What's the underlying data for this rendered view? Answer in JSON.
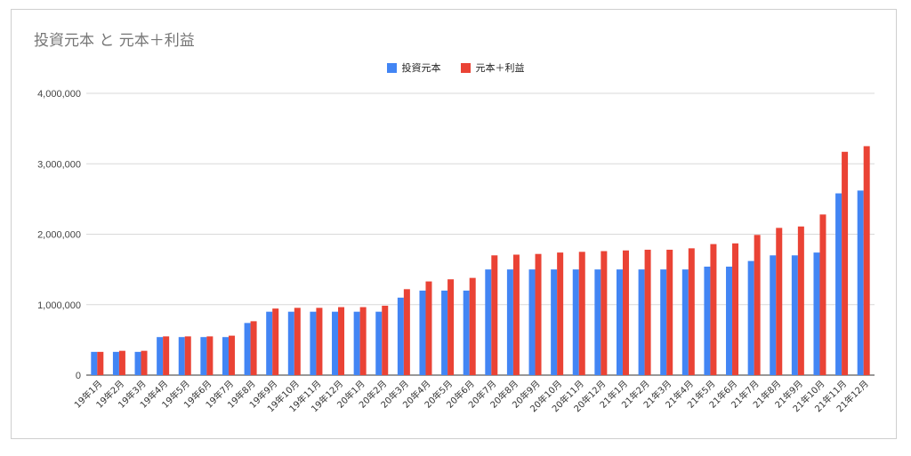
{
  "chart_data": {
    "type": "bar",
    "title": "投資元本 と 元本＋利益",
    "xlabel": "",
    "ylabel": "",
    "ylim": [
      0,
      4000000
    ],
    "yticks": [
      "0",
      "1,000,000",
      "2,000,000",
      "3,000,000",
      "4,000,000"
    ],
    "grid": true,
    "legend_position": "top-center",
    "categories": [
      "19年1月",
      "19年2月",
      "19年3月",
      "19年4月",
      "19年5月",
      "19年6月",
      "19年7月",
      "19年8月",
      "19年9月",
      "19年10月",
      "19年11月",
      "19年12月",
      "20年1月",
      "20年2月",
      "20年3月",
      "20年4月",
      "20年5月",
      "20年6月",
      "20年7月",
      "20年8月",
      "20年9月",
      "20年10月",
      "20年11月",
      "20年12月",
      "21年1月",
      "21年2月",
      "21年3月",
      "21年4月",
      "21年5月",
      "21年6月",
      "21年7月",
      "21年8月",
      "21年9月",
      "21年10月",
      "21年11月",
      "21年12月"
    ],
    "series": [
      {
        "name": "投資元本",
        "color": "#4285f4",
        "values": [
          330000,
          330000,
          330000,
          540000,
          540000,
          540000,
          540000,
          740000,
          900000,
          900000,
          900000,
          900000,
          900000,
          900000,
          1100000,
          1200000,
          1200000,
          1200000,
          1500000,
          1500000,
          1500000,
          1500000,
          1500000,
          1500000,
          1500000,
          1500000,
          1500000,
          1500000,
          1540000,
          1540000,
          1620000,
          1700000,
          1700000,
          1740000,
          2580000,
          2620000
        ]
      },
      {
        "name": "元本＋利益",
        "color": "#ea4335",
        "values": [
          330000,
          345000,
          345000,
          550000,
          550000,
          550000,
          560000,
          765000,
          945000,
          955000,
          955000,
          965000,
          965000,
          985000,
          1220000,
          1330000,
          1360000,
          1380000,
          1700000,
          1710000,
          1720000,
          1740000,
          1750000,
          1760000,
          1770000,
          1780000,
          1780000,
          1800000,
          1860000,
          1870000,
          1990000,
          2090000,
          2110000,
          2280000,
          3170000,
          3250000
        ]
      }
    ]
  }
}
